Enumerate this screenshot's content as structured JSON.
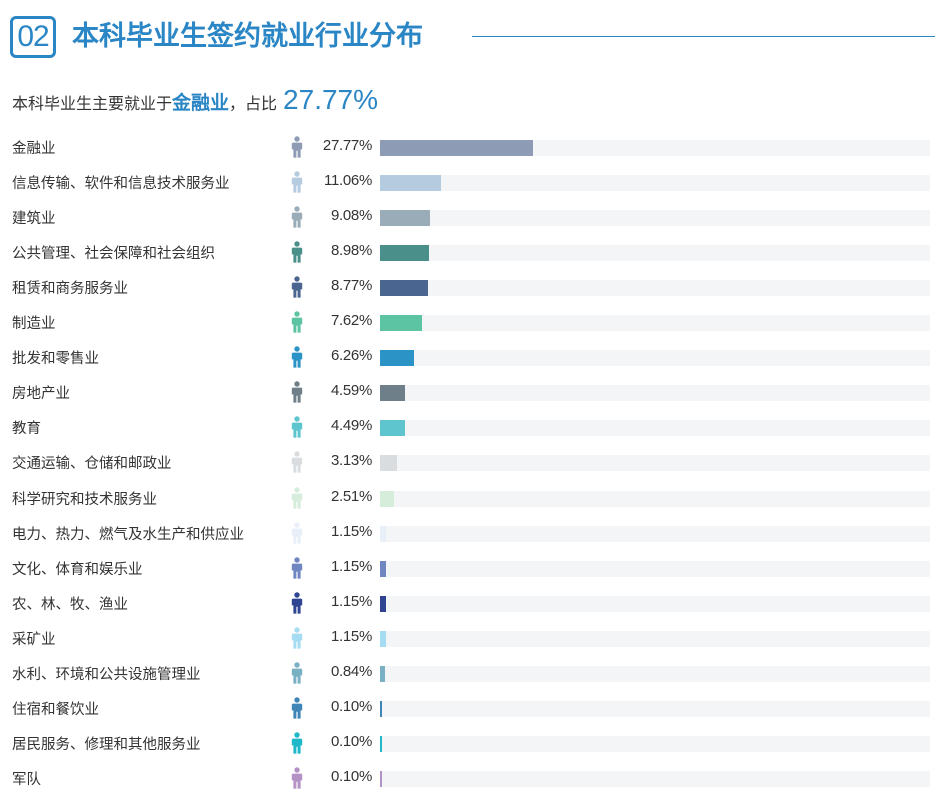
{
  "header": {
    "number": "02",
    "title": "本科毕业生签约就业行业分布"
  },
  "summary": {
    "prefix": "本科毕业生主要就业于",
    "highlight": "金融业",
    "middle": "，占比",
    "value": "27.77%"
  },
  "chart_data": {
    "type": "bar",
    "orientation": "horizontal",
    "categories": [
      "金融业",
      "信息传输、软件和信息技术服务业",
      "建筑业",
      "公共管理、社会保障和社会组织",
      "租赁和商务服务业",
      "制造业",
      "批发和零售业",
      "房地产业",
      "教育",
      "交通运输、仓储和邮政业",
      "科学研究和技术服务业",
      "电力、热力、燃气及水生产和供应业",
      "文化、体育和娱乐业",
      "农、林、牧、渔业",
      "采矿业",
      "水利、环境和公共设施管理业",
      "住宿和餐饮业",
      "居民服务、修理和其他服务业",
      "军队"
    ],
    "values": [
      27.77,
      11.06,
      9.08,
      8.98,
      8.77,
      7.62,
      6.26,
      4.59,
      4.49,
      3.13,
      2.51,
      1.15,
      1.15,
      1.15,
      1.15,
      0.84,
      0.1,
      0.1,
      0.1
    ],
    "value_labels": [
      "27.77%",
      "11.06%",
      "9.08%",
      "8.98%",
      "8.77%",
      "7.62%",
      "6.26%",
      "4.59%",
      "4.49%",
      "3.13%",
      "2.51%",
      "1.15%",
      "1.15%",
      "1.15%",
      "1.15%",
      "0.84%",
      "0.10%",
      "0.10%",
      "0.10%"
    ],
    "colors": [
      "#8e9bb5",
      "#b5cbe0",
      "#9aacb8",
      "#4a8f8a",
      "#4a6690",
      "#5cc4a3",
      "#2b93c5",
      "#6e7f8a",
      "#5ec4ce",
      "#dadde0",
      "#d6eddc",
      "#e8eff8",
      "#6f86c0",
      "#2f4592",
      "#a6dcf2",
      "#7ab0c4",
      "#3f86b8",
      "#1eb8c9",
      "#b592c6"
    ],
    "xlim": [
      0,
      100
    ],
    "grid": false,
    "legend": "none"
  }
}
